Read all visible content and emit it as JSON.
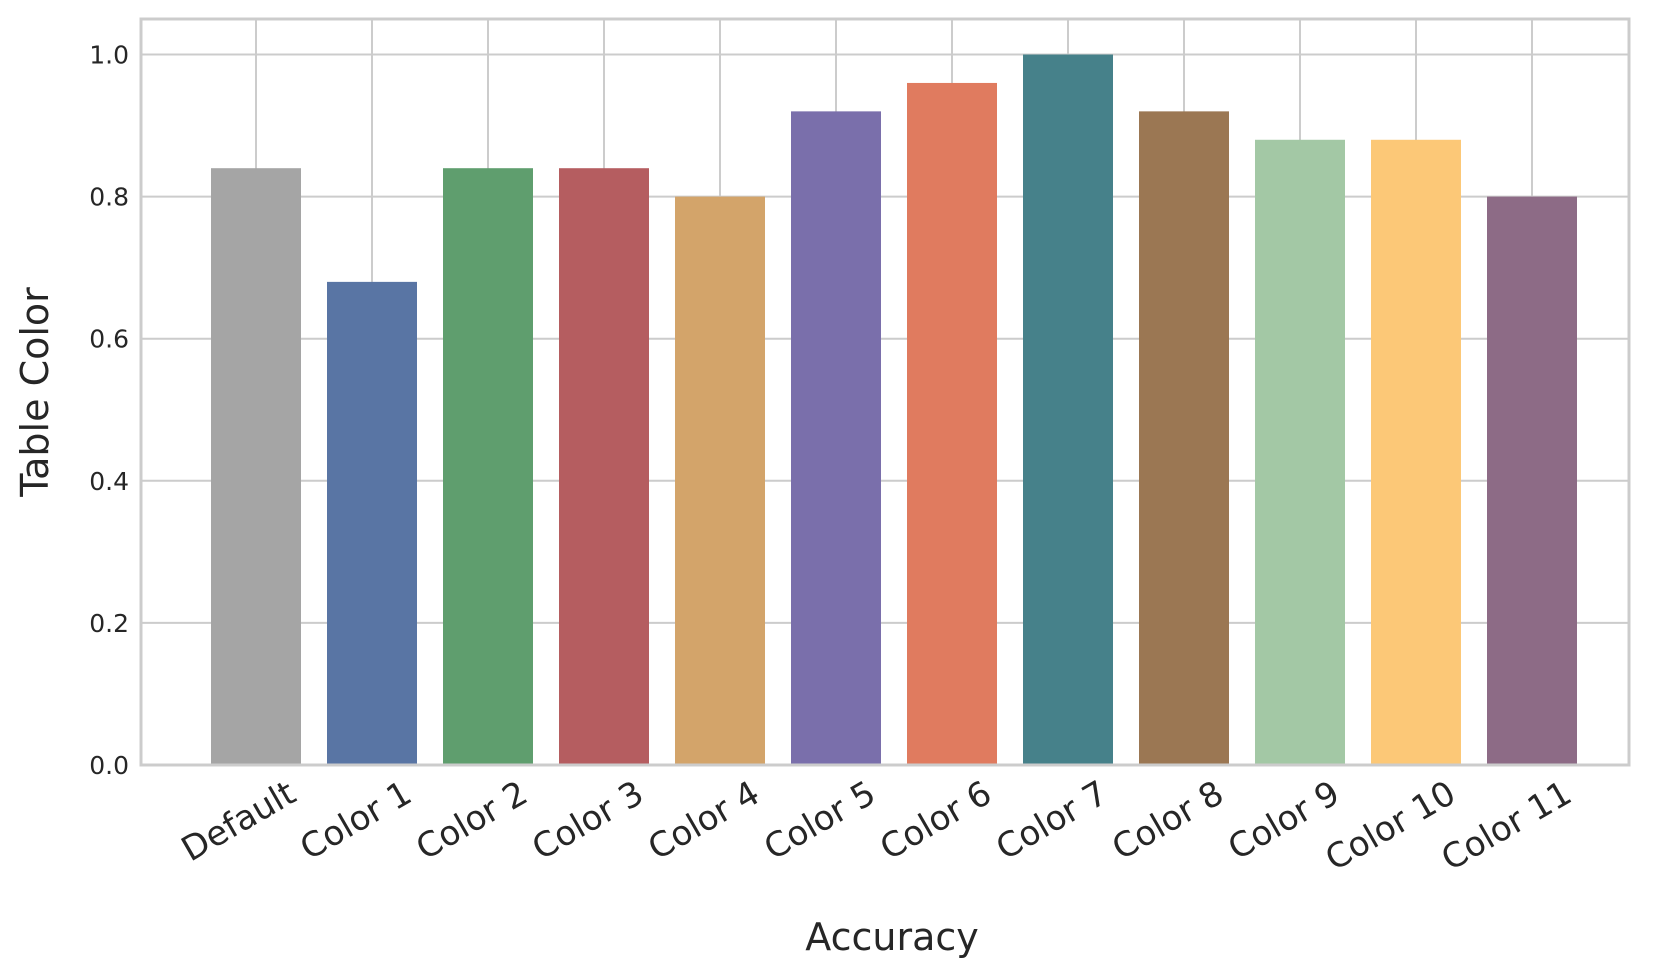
{
  "chart_data": {
    "type": "bar",
    "title": "",
    "xlabel": "Accuracy",
    "ylabel": "Table Color",
    "categories": [
      "Default",
      "Color 1",
      "Color 2",
      "Color 3",
      "Color 4",
      "Color 5",
      "Color 6",
      "Color 7",
      "Color 8",
      "Color 9",
      "Color 10",
      "Color 11"
    ],
    "values": [
      0.84,
      0.68,
      0.84,
      0.84,
      0.8,
      0.92,
      0.96,
      1.0,
      0.92,
      0.88,
      0.88,
      0.8
    ],
    "colors": [
      "#a5a5a5",
      "#5975a4",
      "#5f9e6e",
      "#b55d60",
      "#d3a46a",
      "#7a6fab",
      "#e07b5f",
      "#46818a",
      "#9b7753",
      "#a3c8a5",
      "#fcc877",
      "#8d6b86"
    ],
    "ylim": [
      0,
      1.05
    ],
    "yticks": [
      "0.0",
      "0.2",
      "0.4",
      "0.6",
      "0.8",
      "1.0"
    ],
    "ytick_values": [
      0,
      0.2,
      0.4,
      0.6,
      0.8,
      1.0
    ],
    "grid": true,
    "legend": "none"
  },
  "style": {
    "grid_color": "#cccccc",
    "frame_color": "#cccccc",
    "background": "#ffffff"
  }
}
